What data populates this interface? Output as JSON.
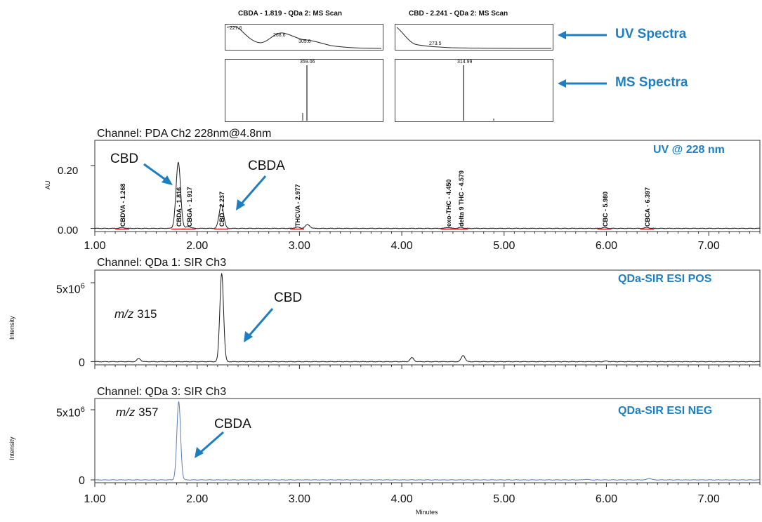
{
  "spectra": [
    {
      "title": "CBDA - 1.819 - QDa 2: MS Scan",
      "uv_peaks": [
        "227.6",
        "268.6",
        "305.6"
      ],
      "ms_peak": "359.06"
    },
    {
      "title": "CBD - 2.241 - QDa 2: MS Scan",
      "uv_peaks": [
        "273.5"
      ],
      "ms_peak": "314.99"
    }
  ],
  "callouts": {
    "uv": "UV Spectra",
    "ms": "MS Spectra"
  },
  "colors": {
    "accent": "#1e7ec2",
    "trace": "#1a1a1a",
    "neg_trace": "#5b7fb8",
    "baseline_fit": "#d02020"
  },
  "chart_data": [
    {
      "type": "line",
      "title": "Channel: PDA Ch2 228nm@4.8nm",
      "badge": "UV @ 228 nm",
      "ylabel": "AU",
      "xlim": [
        1.0,
        7.5
      ],
      "ylim": [
        -0.01,
        0.28
      ],
      "yticks": [
        "0.20",
        "0.00"
      ],
      "ytick_values": [
        0.2,
        0.0
      ],
      "xticks": [
        "1.00",
        "2.00",
        "3.00",
        "4.00",
        "5.00",
        "6.00",
        "7.00"
      ],
      "peaks": [
        {
          "label": "CBDVA - 1.268",
          "rt": 1.268,
          "height": 0.003
        },
        {
          "label": "CBDA - 1.816",
          "rt": 1.816,
          "height": 0.21
        },
        {
          "label": "CBGA - 1.917",
          "rt": 1.917,
          "height": 0.006
        },
        {
          "label": "CBD - 2.237",
          "rt": 2.237,
          "height": 0.075
        },
        {
          "label": "THCVA - 2.977",
          "rt": 2.977,
          "height": 0.004
        },
        {
          "label": "exo-THC - 4.450",
          "rt": 4.45,
          "height": 0.003
        },
        {
          "label": "delta 9 THC - 4.579",
          "rt": 4.579,
          "height": 0.003
        },
        {
          "label": "CBC - 5.980",
          "rt": 5.98,
          "height": 0.003
        },
        {
          "label": "CBCA - 6.397",
          "rt": 6.397,
          "height": 0.003
        }
      ],
      "extra_peaks": [
        {
          "rt": 3.08,
          "height": 0.012
        }
      ],
      "annotations": [
        "CBD",
        "CBDA"
      ]
    },
    {
      "type": "line",
      "title": "Channel: QDa 1: SIR Ch3",
      "badge": "QDa-SIR ESI POS",
      "ylabel": "Intensity",
      "mz_label": "315",
      "xlim": [
        1.0,
        7.5
      ],
      "ylim": [
        -0.2,
        5.8
      ],
      "ytick_values": [
        5.0,
        0.0
      ],
      "peaks": [
        {
          "rt": 1.43,
          "height": 0.2
        },
        {
          "rt": 2.24,
          "height": 5.6
        },
        {
          "rt": 4.1,
          "height": 0.25
        },
        {
          "rt": 4.6,
          "height": 0.4
        },
        {
          "rt": 6.0,
          "height": 0.04
        }
      ],
      "annotations": [
        "CBD"
      ]
    },
    {
      "type": "line",
      "title": "Channel: QDa 3: SIR Ch3",
      "badge": "QDa-SIR ESI NEG",
      "ylabel": "Intensity",
      "xlabel": "Minutes",
      "mz_label": "357",
      "xlim": [
        1.0,
        7.5
      ],
      "ylim": [
        -0.2,
        5.8
      ],
      "ytick_values": [
        5.0,
        0.0
      ],
      "xticks": [
        "1.00",
        "2.00",
        "3.00",
        "4.00",
        "5.00",
        "6.00",
        "7.00"
      ],
      "peaks": [
        {
          "rt": 1.82,
          "height": 5.6
        },
        {
          "rt": 5.8,
          "height": 0.04
        },
        {
          "rt": 6.42,
          "height": 0.12
        }
      ],
      "annotations": [
        "CBDA"
      ]
    }
  ]
}
